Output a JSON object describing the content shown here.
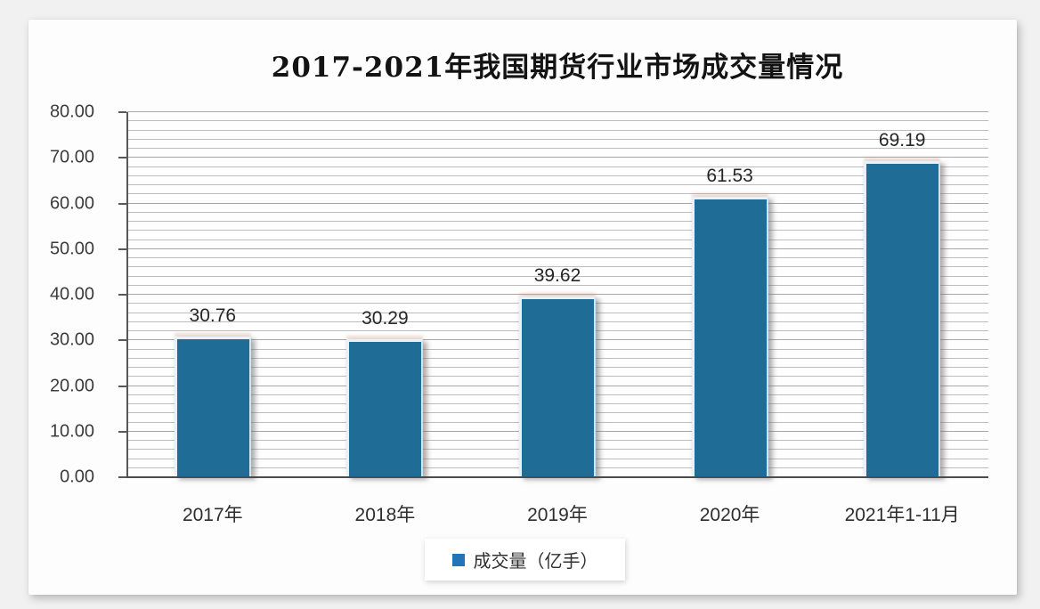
{
  "title": {
    "text": "2017-2021年我国期货行业市场成交量情况"
  },
  "legend": {
    "label": "成交量（亿手）",
    "marker_color": "#2273B8"
  },
  "y_axis": {
    "tick_labels": [
      "0.00",
      "10.00",
      "20.00",
      "30.00",
      "40.00",
      "50.00",
      "60.00",
      "70.00",
      "80.00"
    ]
  },
  "chart_data": {
    "type": "bar",
    "title": "2017-2021年我国期货行业市场成交量情况",
    "categories": [
      "2017年",
      "2018年",
      "2019年",
      "2020年",
      "2021年1-11月"
    ],
    "series": [
      {
        "name": "成交量（亿手）",
        "values": [
          30.76,
          30.29,
          39.62,
          61.53,
          69.19
        ]
      }
    ],
    "data_labels": [
      "30.76",
      "30.29",
      "39.62",
      "61.53",
      "69.19"
    ],
    "xlabel": "",
    "ylabel": "",
    "ylim": [
      0,
      80
    ],
    "y_major_step": 10,
    "y_minor_step": 2,
    "grid": "horizontal minor+major, no vertical",
    "legend_position": "bottom-center",
    "bar_color": "#1F6D97",
    "bar_highlight_color": "#E7F1F7",
    "legend_marker_color": "#2273B8",
    "axis_line_color": "#585858",
    "gridline_color": "#BCBCBC"
  }
}
